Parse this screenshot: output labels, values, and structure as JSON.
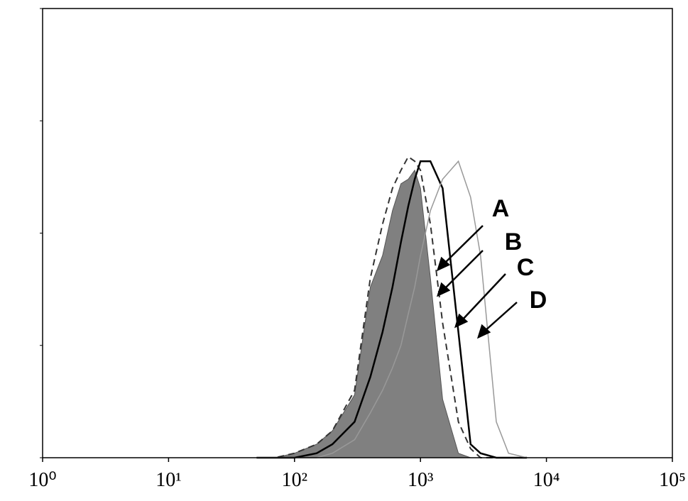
{
  "chart_data": {
    "type": "line",
    "xscale": "log",
    "x": [
      50,
      70,
      100,
      150,
      200,
      300,
      400,
      500,
      600,
      700,
      800,
      900,
      1000,
      1200,
      1500,
      2000,
      2500,
      3000,
      4000,
      5000,
      7000
    ],
    "series": [
      {
        "color": "#808080",
        "fill": true,
        "dash": false,
        "width": 1,
        "values": [
          0,
          0,
          1,
          3,
          6,
          14,
          38,
          45,
          55,
          61,
          62,
          64,
          60,
          40,
          13,
          1,
          0,
          0,
          0,
          0,
          0
        ]
      },
      {
        "color": "#333333",
        "fill": false,
        "dash": true,
        "width": 2,
        "values": [
          0,
          0,
          1,
          3,
          6,
          15,
          40,
          52,
          60,
          64,
          67,
          66,
          64,
          52,
          30,
          8,
          2,
          0,
          0,
          0,
          0
        ]
      },
      {
        "color": "#000000",
        "fill": false,
        "dash": false,
        "width": 2.5,
        "values": [
          0,
          0,
          0,
          1,
          3,
          8,
          18,
          28,
          38,
          48,
          56,
          62,
          66,
          66,
          60,
          28,
          3,
          1,
          0,
          0,
          0
        ]
      },
      {
        "color": "#999999",
        "fill": false,
        "dash": false,
        "width": 1.5,
        "values": [
          0,
          0,
          0,
          0,
          1,
          4,
          10,
          15,
          20,
          25,
          32,
          38,
          45,
          55,
          62,
          66,
          58,
          45,
          8,
          1,
          0
        ]
      }
    ],
    "xlim": [
      1,
      100000
    ],
    "xticks": [
      {
        "value": 1,
        "label": "10⁰"
      },
      {
        "value": 10,
        "label": "10¹"
      },
      {
        "value": 100,
        "label": "10²"
      },
      {
        "value": 1000,
        "label": "10³"
      },
      {
        "value": 10000,
        "label": "10⁴"
      },
      {
        "value": 100000,
        "label": "10⁵"
      }
    ],
    "ylim": [
      0,
      100
    ],
    "yticks": [
      0,
      25,
      50,
      75,
      100
    ],
    "annotations": [
      "A",
      "B",
      "C",
      "D"
    ]
  }
}
